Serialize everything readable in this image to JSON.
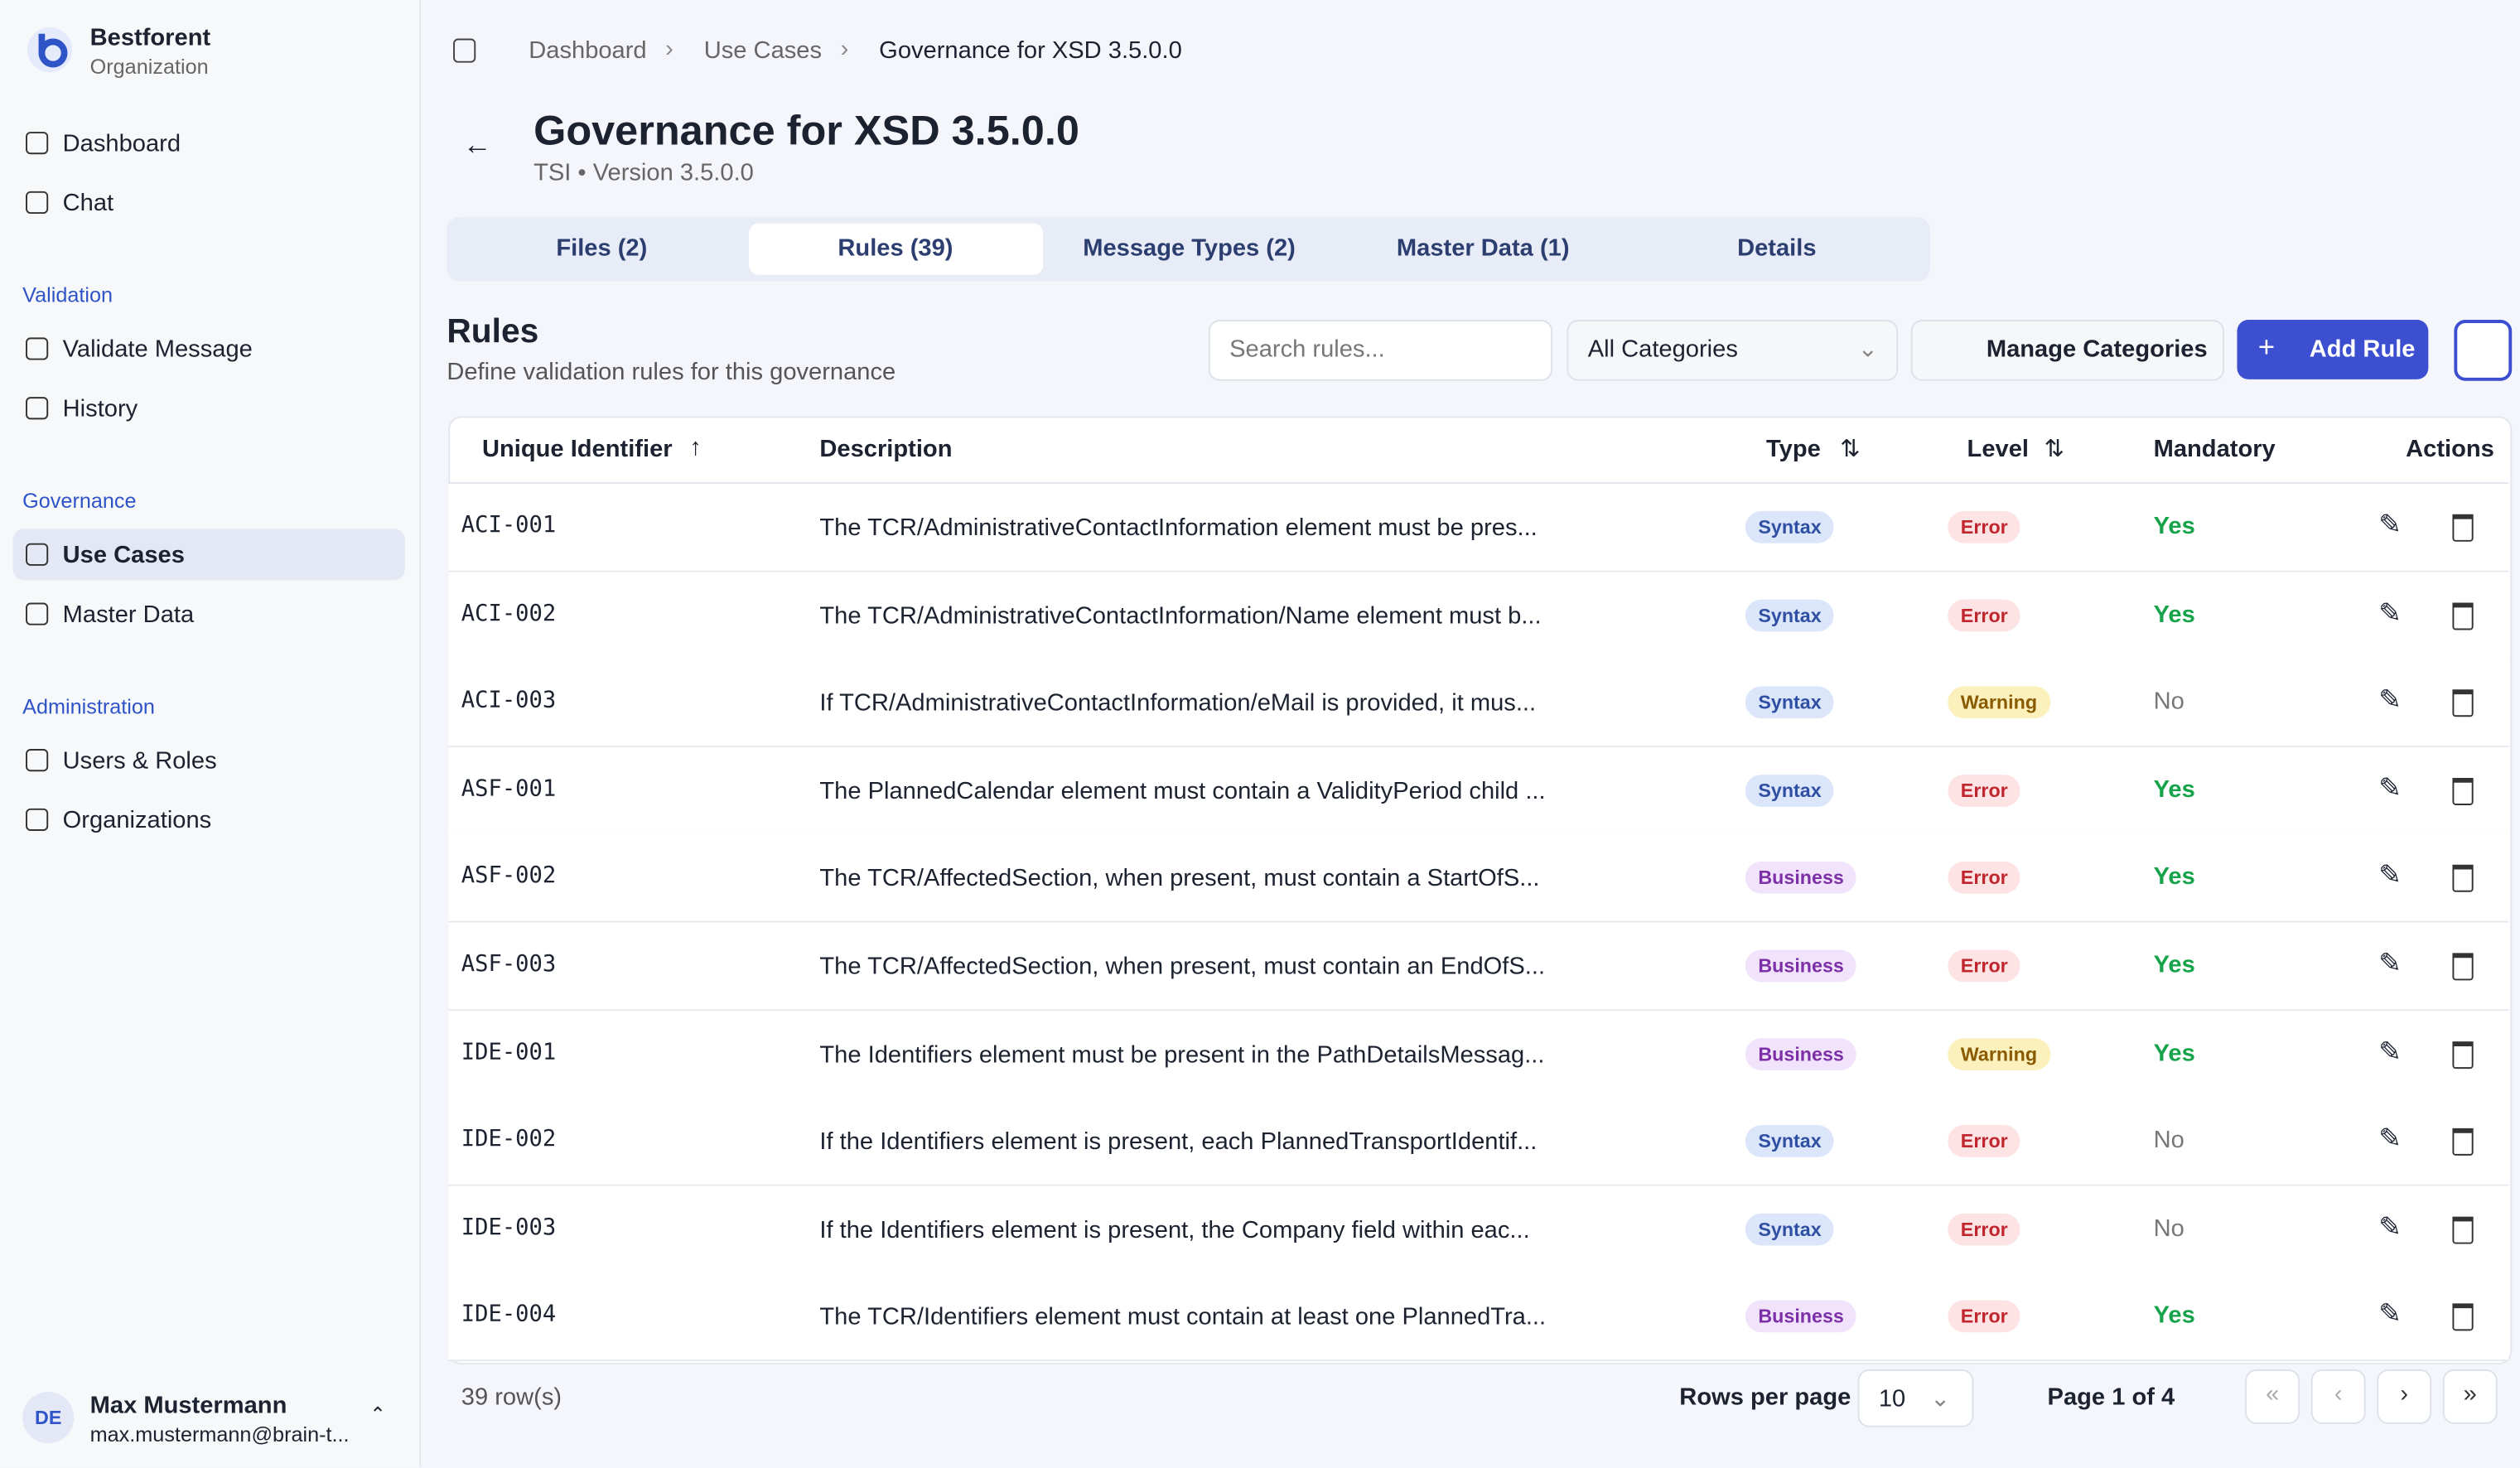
{
  "sidebar": {
    "org_name": "Bestforent",
    "org_type": "Organization",
    "main": [
      "Dashboard",
      "Chat"
    ],
    "groups": [
      {
        "title": "Validation",
        "items": [
          "Validate Message",
          "History"
        ]
      },
      {
        "title": "Governance",
        "items": [
          "Use Cases",
          "Master Data"
        ]
      },
      {
        "title": "Administration",
        "items": [
          "Users & Roles",
          "Organizations"
        ]
      }
    ],
    "user": {
      "initials": "DE",
      "name": "Max Mustermann",
      "email": "max.mustermann@brain-t..."
    }
  },
  "breadcrumb": [
    "Dashboard",
    "Use Cases",
    "Governance for XSD 3.5.0.0"
  ],
  "header": {
    "title": "Governance for XSD 3.5.0.0",
    "subtitle": "TSI • Version 3.5.0.0"
  },
  "tabs": [
    "Files (2)",
    "Rules (39)",
    "Message Types (2)",
    "Master Data (1)",
    "Details"
  ],
  "rules": {
    "title": "Rules",
    "subtitle": "Define validation rules for this governance",
    "search_placeholder": "Search rules...",
    "category_filter": "All Categories",
    "manage_button": "Manage Categories",
    "add_button": "Add Rule"
  },
  "table": {
    "columns": [
      "Unique Identifier",
      "Description",
      "Type",
      "Level",
      "Mandatory",
      "Actions"
    ],
    "rows": [
      [
        "ACI-001",
        "The TCR/AdministrativeContactInformation element must be pres...",
        "Syntax",
        "Error",
        "Yes"
      ],
      [
        "ACI-002",
        "The TCR/AdministrativeContactInformation/Name element must b...",
        "Syntax",
        "Error",
        "Yes"
      ],
      [
        "ACI-003",
        "If TCR/AdministrativeContactInformation/eMail is provided, it mus...",
        "Syntax",
        "Warning",
        "No"
      ],
      [
        "ASF-001",
        "The PlannedCalendar element must contain a ValidityPeriod child ...",
        "Syntax",
        "Error",
        "Yes"
      ],
      [
        "ASF-002",
        "The TCR/AffectedSection, when present, must contain a StartOfS...",
        "Business",
        "Error",
        "Yes"
      ],
      [
        "ASF-003",
        "The TCR/AffectedSection, when present, must contain an EndOfS...",
        "Business",
        "Error",
        "Yes"
      ],
      [
        "IDE-001",
        "The Identifiers element must be present in the PathDetailsMessag...",
        "Business",
        "Warning",
        "Yes"
      ],
      [
        "IDE-002",
        "If the Identifiers element is present, each PlannedTransportIdentif...",
        "Syntax",
        "Error",
        "No"
      ],
      [
        "IDE-003",
        "If the Identifiers element is present, the Company field within eac...",
        "Syntax",
        "Error",
        "No"
      ],
      [
        "IDE-004",
        "The TCR/Identifiers element must contain at least one PlannedTra...",
        "Business",
        "Error",
        "Yes"
      ]
    ]
  },
  "footer": {
    "row_count": "39 row(s)",
    "rows_per_page_label": "Rows per page",
    "rows_per_page": 10,
    "page_info": "Page 1 of 4"
  }
}
